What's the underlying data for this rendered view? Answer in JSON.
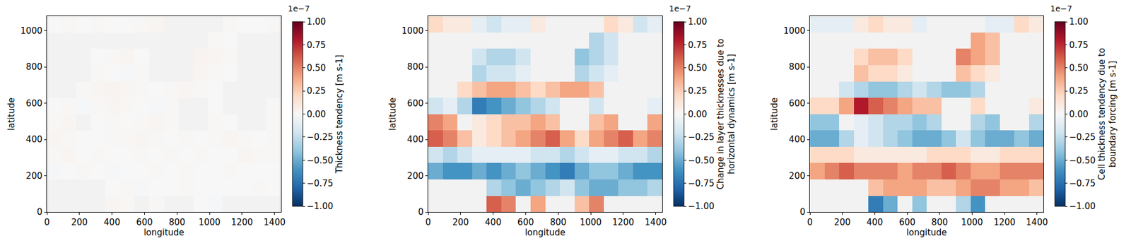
{
  "chart_data": [
    {
      "type": "heatmap",
      "xlabel": "longitude",
      "ylabel": "latitude",
      "colorbar_title": "Thickness tendency [m s-1]",
      "colorbar_exponent": "1e−7",
      "xlim": [
        0,
        1440
      ],
      "ylim": [
        0,
        1080
      ],
      "xticks": [
        0,
        200,
        400,
        600,
        800,
        1000,
        1200,
        1400
      ],
      "yticks": [
        0,
        200,
        400,
        600,
        800,
        1000
      ],
      "zlim": [
        -1e-07,
        1e-07
      ],
      "zticks": [
        {
          "value": -1e-07,
          "label": "−1.00"
        },
        {
          "value": -7.5e-08,
          "label": "−0.75"
        },
        {
          "value": -5e-08,
          "label": "−0.50"
        },
        {
          "value": -2.5e-08,
          "label": "−0.25"
        },
        {
          "value": 0,
          "label": "0.00"
        },
        {
          "value": 2.5e-08,
          "label": "0.25"
        },
        {
          "value": 5e-08,
          "label": "0.50"
        },
        {
          "value": 7.5e-08,
          "label": "0.75"
        },
        {
          "value": 1e-07,
          "label": "1.00"
        }
      ],
      "x": [
        45,
        135,
        225,
        315,
        405,
        495,
        585,
        675,
        765,
        855,
        945,
        1035,
        1125,
        1215,
        1305,
        1395
      ],
      "y": [
        45,
        135,
        225,
        315,
        405,
        495,
        585,
        675,
        765,
        855,
        945,
        1035
      ],
      "cells": [
        [
          null,
          null,
          null,
          null,
          2e-09,
          1e-09,
          null,
          1e-09,
          null,
          null,
          0,
          -1e-09,
          null,
          null,
          null,
          null
        ],
        [
          null,
          null,
          null,
          null,
          0,
          1e-09,
          -1e-09,
          0,
          0,
          1e-09,
          0,
          0,
          0,
          0,
          1e-09,
          0
        ],
        [
          -1e-09,
          0,
          1e-09,
          0,
          -1e-09,
          0,
          0,
          1e-09,
          0,
          1e-09,
          0,
          0,
          1e-09,
          0,
          0,
          0
        ],
        [
          1e-09,
          2e-09,
          0,
          1e-09,
          0,
          0,
          1e-09,
          0,
          1e-09,
          0,
          1e-09,
          0,
          0,
          2e-09,
          1e-09,
          1e-09
        ],
        [
          2e-09,
          1e-09,
          0,
          0,
          1e-09,
          1e-09,
          2e-09,
          1e-09,
          0,
          1e-09,
          0,
          1e-09,
          2e-09,
          1e-09,
          0,
          1e-09
        ],
        [
          1e-09,
          2e-09,
          null,
          0,
          1e-09,
          0,
          1e-09,
          2e-09,
          1e-09,
          null,
          null,
          1e-09,
          0,
          null,
          null,
          1e-09
        ],
        [
          0,
          1e-09,
          -1e-09,
          1e-09,
          2e-09,
          1e-09,
          0,
          -1e-09,
          1e-09,
          null,
          null,
          0,
          null,
          null,
          null,
          1e-09
        ],
        [
          null,
          null,
          1e-09,
          2e-09,
          3e-09,
          2e-09,
          1e-09,
          0,
          1e-09,
          2e-09,
          1e-09,
          0,
          null,
          null,
          null,
          null
        ],
        [
          null,
          null,
          null,
          1e-09,
          0,
          -1e-09,
          1e-09,
          null,
          null,
          null,
          2e-09,
          1e-09,
          0,
          null,
          null,
          null
        ],
        [
          null,
          null,
          null,
          0,
          1e-09,
          2e-09,
          0,
          null,
          null,
          null,
          3e-09,
          2e-09,
          1e-09,
          null,
          null,
          null
        ],
        [
          null,
          null,
          null,
          null,
          null,
          null,
          null,
          null,
          null,
          null,
          null,
          1e-09,
          0,
          null,
          null,
          null
        ],
        [
          0,
          1e-09,
          0,
          1e-09,
          0,
          0,
          1e-09,
          2e-09,
          null,
          null,
          null,
          null,
          1e-09,
          0,
          0,
          1e-09
        ]
      ]
    },
    {
      "type": "heatmap",
      "xlabel": "longitude",
      "ylabel": "latitude",
      "colorbar_title": "Change in layer thicknesses due to horizontal dynamics [m s-1]",
      "colorbar_exponent": "1e−7",
      "xlim": [
        0,
        1440
      ],
      "ylim": [
        0,
        1080
      ],
      "xticks": [
        0,
        200,
        400,
        600,
        800,
        1000,
        1200,
        1400
      ],
      "yticks": [
        0,
        200,
        400,
        600,
        800,
        1000
      ],
      "zlim": [
        -1e-07,
        1e-07
      ],
      "zticks": [
        {
          "value": -1e-07,
          "label": "−1.00"
        },
        {
          "value": -7.5e-08,
          "label": "−0.75"
        },
        {
          "value": -5e-08,
          "label": "−0.50"
        },
        {
          "value": -2.5e-08,
          "label": "−0.25"
        },
        {
          "value": 0,
          "label": "0.00"
        },
        {
          "value": 2.5e-08,
          "label": "0.25"
        },
        {
          "value": 5e-08,
          "label": "0.50"
        },
        {
          "value": 7.5e-08,
          "label": "0.75"
        },
        {
          "value": 1e-07,
          "label": "1.00"
        }
      ],
      "x": [
        45,
        135,
        225,
        315,
        405,
        495,
        585,
        675,
        765,
        855,
        945,
        1035,
        1125,
        1215,
        1305,
        1395
      ],
      "y": [
        45,
        135,
        225,
        315,
        405,
        495,
        585,
        675,
        765,
        855,
        945,
        1035
      ],
      "cells": [
        [
          null,
          null,
          null,
          null,
          6e-08,
          5e-08,
          null,
          4e-08,
          null,
          null,
          3e-08,
          5e-08,
          null,
          null,
          null,
          null
        ],
        [
          null,
          null,
          null,
          null,
          -3e-08,
          -4e-08,
          -5e-08,
          -4e-08,
          -3e-08,
          -2e-08,
          -4e-08,
          -5e-08,
          -5e-08,
          -4e-08,
          -4e-08,
          -3e-08
        ],
        [
          -5e-08,
          -6e-08,
          -6e-08,
          -5e-08,
          -6e-08,
          -5e-08,
          -4e-08,
          -5e-08,
          -6e-08,
          -7e-08,
          -5e-08,
          -4e-08,
          -4e-08,
          -5e-08,
          -6e-08,
          -6e-08
        ],
        [
          -2e-08,
          -3e-08,
          -2e-08,
          -1e-08,
          -1e-08,
          -1e-08,
          -1e-08,
          -2e-08,
          -2e-08,
          -3e-08,
          -2e-08,
          -1e-08,
          -1e-08,
          -2e-08,
          -2e-08,
          -3e-08
        ],
        [
          6e-08,
          5e-08,
          3e-08,
          1e-08,
          2e-08,
          3e-08,
          4e-08,
          5e-08,
          6e-08,
          4e-08,
          2e-08,
          4e-08,
          5e-08,
          6e-08,
          4e-08,
          5e-08
        ],
        [
          5e-08,
          4e-08,
          null,
          1e-08,
          2e-08,
          3e-08,
          3e-08,
          4e-08,
          3e-08,
          null,
          null,
          3e-08,
          4e-08,
          null,
          null,
          4e-08
        ],
        [
          -2e-08,
          -1e-08,
          -3e-08,
          -7e-08,
          -6e-08,
          -5e-08,
          -4e-08,
          -3e-08,
          -2e-08,
          null,
          null,
          -2e-08,
          null,
          null,
          null,
          -1e-08
        ],
        [
          null,
          null,
          2e-08,
          3e-08,
          4e-08,
          4e-08,
          3e-08,
          2e-08,
          3e-08,
          4e-08,
          4e-08,
          3e-08,
          null,
          null,
          null,
          null
        ],
        [
          null,
          null,
          null,
          -3e-08,
          -2e-08,
          -2e-08,
          -1e-08,
          null,
          null,
          null,
          -3e-08,
          -2e-08,
          -1e-08,
          null,
          null,
          null
        ],
        [
          null,
          null,
          null,
          -2e-08,
          -3e-08,
          -3e-08,
          -2e-08,
          null,
          null,
          null,
          -4e-08,
          -3e-08,
          -2e-08,
          null,
          null,
          null
        ],
        [
          null,
          null,
          null,
          null,
          null,
          null,
          null,
          null,
          null,
          null,
          null,
          -3e-08,
          -2e-08,
          null,
          null,
          null
        ],
        [
          2e-08,
          1e-08,
          1e-08,
          -1e-08,
          -2e-08,
          -1e-08,
          -1e-08,
          1e-08,
          null,
          null,
          null,
          null,
          2e-08,
          1e-08,
          -2e-08,
          -1e-08
        ]
      ]
    },
    {
      "type": "heatmap",
      "xlabel": "longitude",
      "ylabel": "latitude",
      "colorbar_title": "Cell thickness tendency due to boundary forcing [m s-1]",
      "colorbar_exponent": "1e−7",
      "xlim": [
        0,
        1440
      ],
      "ylim": [
        0,
        1080
      ],
      "xticks": [
        0,
        200,
        400,
        600,
        800,
        1000,
        1200,
        1400
      ],
      "yticks": [
        0,
        200,
        400,
        600,
        800,
        1000
      ],
      "zlim": [
        -1e-07,
        1e-07
      ],
      "zticks": [
        {
          "value": -1e-07,
          "label": "−1.00"
        },
        {
          "value": -7.5e-08,
          "label": "−0.75"
        },
        {
          "value": -5e-08,
          "label": "−0.50"
        },
        {
          "value": -2.5e-08,
          "label": "−0.25"
        },
        {
          "value": 0,
          "label": "0.00"
        },
        {
          "value": 2.5e-08,
          "label": "0.25"
        },
        {
          "value": 5e-08,
          "label": "0.50"
        },
        {
          "value": 7.5e-08,
          "label": "0.75"
        },
        {
          "value": 1e-07,
          "label": "1.00"
        }
      ],
      "x": [
        45,
        135,
        225,
        315,
        405,
        495,
        585,
        675,
        765,
        855,
        945,
        1035,
        1125,
        1215,
        1305,
        1395
      ],
      "y": [
        45,
        135,
        225,
        315,
        405,
        495,
        585,
        675,
        765,
        855,
        945,
        1035
      ],
      "cells": [
        [
          null,
          null,
          null,
          null,
          -7e-08,
          -5e-08,
          null,
          -4e-08,
          null,
          null,
          -3e-08,
          -6e-08,
          null,
          null,
          null,
          null
        ],
        [
          null,
          null,
          null,
          null,
          3e-08,
          4e-08,
          4e-08,
          4e-08,
          3e-08,
          3e-08,
          4e-08,
          5e-08,
          5e-08,
          4e-08,
          4e-08,
          3e-08
        ],
        [
          4e-08,
          5e-08,
          6e-08,
          5e-08,
          5e-08,
          5e-08,
          4e-08,
          5e-08,
          5e-08,
          6e-08,
          5e-08,
          4e-08,
          4e-08,
          5e-08,
          5e-08,
          5e-08
        ],
        [
          2e-08,
          2e-08,
          2e-08,
          1e-08,
          1e-08,
          1e-08,
          1e-08,
          1e-08,
          2e-08,
          2e-08,
          2e-08,
          1e-08,
          1e-08,
          2e-08,
          2e-08,
          2e-08
        ],
        [
          -5e-08,
          -5e-08,
          -3e-08,
          -1e-08,
          -2e-08,
          -3e-08,
          -4e-08,
          -5e-08,
          -5e-08,
          -4e-08,
          -2e-08,
          -4e-08,
          -5e-08,
          -5e-08,
          -4e-08,
          -5e-08
        ],
        [
          -4e-08,
          -4e-08,
          null,
          -1e-08,
          -2e-08,
          -3e-08,
          -3e-08,
          -4e-08,
          -3e-08,
          null,
          null,
          -3e-08,
          -4e-08,
          null,
          null,
          -3e-08
        ],
        [
          2e-08,
          2e-08,
          4e-08,
          8e-08,
          6e-08,
          5e-08,
          4e-08,
          3e-08,
          3e-08,
          null,
          null,
          2e-08,
          null,
          null,
          null,
          1e-08
        ],
        [
          null,
          null,
          -2e-08,
          -3e-08,
          -4e-08,
          -4e-08,
          -3e-08,
          -2e-08,
          -3e-08,
          -4e-08,
          -4e-08,
          -3e-08,
          null,
          null,
          null,
          null
        ],
        [
          null,
          null,
          null,
          3e-08,
          2e-08,
          2e-08,
          1e-08,
          null,
          null,
          null,
          3e-08,
          2e-08,
          1e-08,
          null,
          null,
          null
        ],
        [
          null,
          null,
          null,
          2e-08,
          3e-08,
          3e-08,
          2e-08,
          null,
          null,
          null,
          5e-08,
          4e-08,
          3e-08,
          null,
          null,
          null
        ],
        [
          null,
          null,
          null,
          null,
          null,
          null,
          null,
          null,
          null,
          null,
          null,
          4e-08,
          3e-08,
          null,
          null,
          null
        ],
        [
          -1e-08,
          -1e-08,
          -1e-08,
          1e-08,
          2e-08,
          1e-08,
          1e-08,
          -1e-08,
          null,
          null,
          null,
          null,
          -1e-08,
          -1e-08,
          2e-08,
          1e-08
        ]
      ]
    }
  ]
}
